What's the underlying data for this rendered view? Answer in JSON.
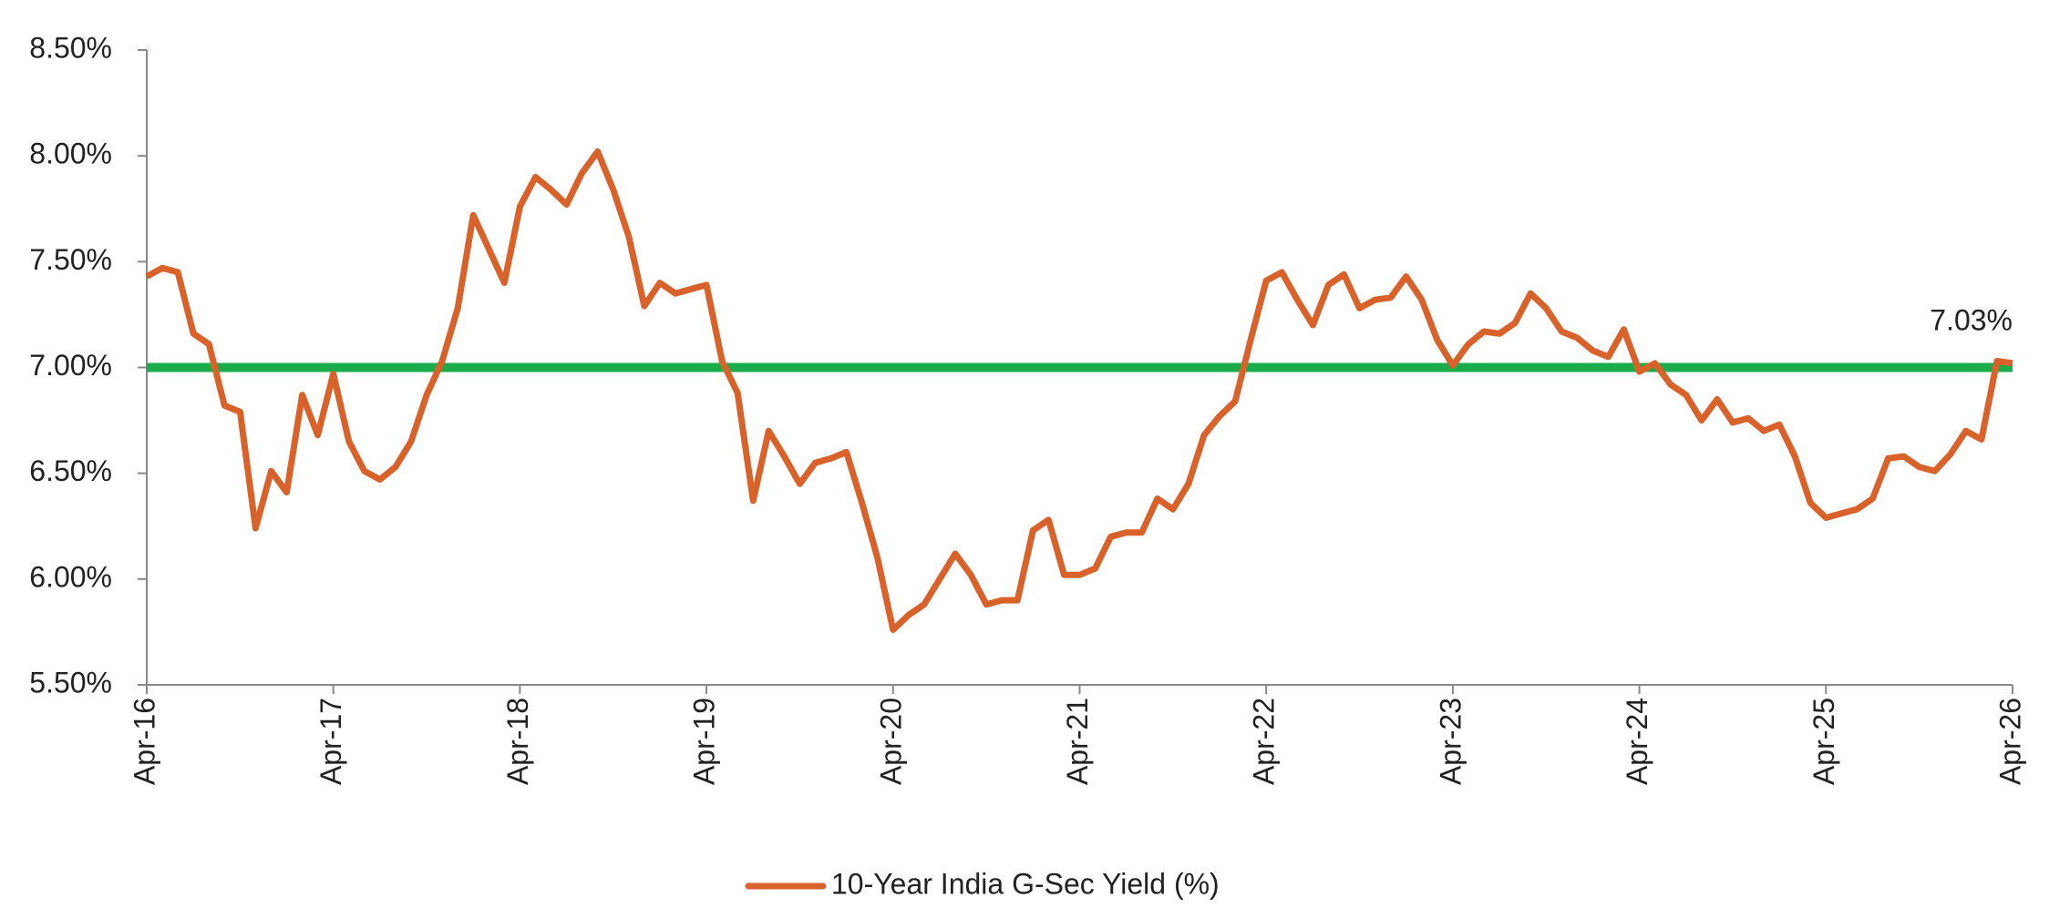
{
  "chart_data": {
    "type": "line",
    "categories": [
      "Apr-16",
      null,
      null,
      null,
      null,
      null,
      null,
      null,
      null,
      null,
      null,
      null,
      "Apr-17",
      null,
      null,
      null,
      null,
      null,
      null,
      null,
      null,
      null,
      null,
      null,
      "Apr-18",
      null,
      null,
      null,
      null,
      null,
      null,
      null,
      null,
      null,
      null,
      null,
      "Apr-19",
      null,
      null,
      null,
      null,
      null,
      null,
      null,
      null,
      null,
      null,
      null,
      "Apr-20",
      null,
      null,
      null,
      null,
      null,
      null,
      null,
      null,
      null,
      null,
      null,
      "Apr-21",
      null,
      null,
      null,
      null,
      null,
      null,
      null,
      null,
      null,
      null,
      null,
      "Apr-22",
      null,
      null,
      null,
      null,
      null,
      null,
      null,
      null,
      null,
      null,
      null,
      "Apr-23",
      null,
      null,
      null,
      null,
      null,
      null,
      null,
      null,
      null,
      null,
      null,
      "Apr-24",
      null,
      null,
      null,
      null,
      null,
      null,
      null,
      null,
      null,
      null,
      null,
      "Apr-25",
      null,
      null,
      null,
      null,
      null,
      null,
      null,
      null,
      null,
      null,
      null,
      "Apr-26"
    ],
    "series": [
      {
        "name": "10-Year India G-Sec Yield (%)",
        "color": "#d9622b",
        "values": [
          7.43,
          7.47,
          7.45,
          7.16,
          7.11,
          6.82,
          6.79,
          6.24,
          6.51,
          6.41,
          6.87,
          6.68,
          6.97,
          6.65,
          6.51,
          6.47,
          6.53,
          6.65,
          6.87,
          7.03,
          7.28,
          7.72,
          7.56,
          7.4,
          7.76,
          7.9,
          7.84,
          7.77,
          7.92,
          8.02,
          7.84,
          7.62,
          7.29,
          7.4,
          7.35,
          7.37,
          7.39,
          7.03,
          6.88,
          6.37,
          6.7,
          6.58,
          6.45,
          6.55,
          6.57,
          6.6,
          6.36,
          6.1,
          5.76,
          5.83,
          5.88,
          6.0,
          6.12,
          6.02,
          5.88,
          5.9,
          5.9,
          6.23,
          6.28,
          6.02,
          6.02,
          6.05,
          6.2,
          6.22,
          6.22,
          6.38,
          6.33,
          6.45,
          6.68,
          6.77,
          6.84,
          7.13,
          7.41,
          7.45,
          7.32,
          7.2,
          7.39,
          7.44,
          7.28,
          7.32,
          7.33,
          7.43,
          7.32,
          7.13,
          7.01,
          7.11,
          7.17,
          7.16,
          7.21,
          7.35,
          7.28,
          7.17,
          7.14,
          7.08,
          7.05,
          7.18,
          6.98,
          7.02,
          6.92,
          6.87,
          6.75,
          6.85,
          6.74,
          6.76,
          6.7,
          6.73,
          6.58,
          6.36,
          6.29,
          6.31,
          6.33,
          6.38,
          6.57,
          6.58,
          6.53,
          6.51,
          6.59,
          6.7,
          6.66,
          7.03,
          7.02
        ]
      }
    ],
    "reference_line": {
      "value": 7.0,
      "color": "#1aab4b"
    },
    "annotation": "7.03%",
    "ylim": [
      5.5,
      8.5
    ],
    "yticks": [
      {
        "value": 5.5,
        "label": "5.50%"
      },
      {
        "value": 6.0,
        "label": "6.00%"
      },
      {
        "value": 6.5,
        "label": "6.50%"
      },
      {
        "value": 7.0,
        "label": "7.00%"
      },
      {
        "value": 7.5,
        "label": "7.50%"
      },
      {
        "value": 8.0,
        "label": "8.00%"
      },
      {
        "value": 8.5,
        "label": "8.50%"
      }
    ],
    "legend": "bottom"
  }
}
